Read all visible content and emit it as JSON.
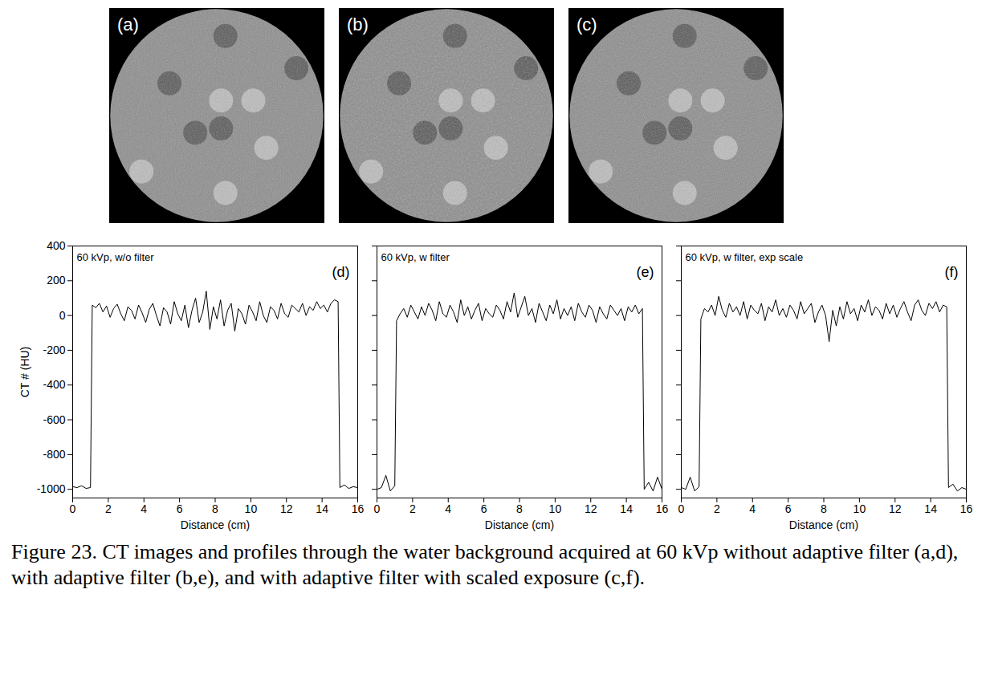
{
  "images": [
    {
      "label": "(a)"
    },
    {
      "label": "(b)"
    },
    {
      "label": "(c)"
    }
  ],
  "chart_data": [
    {
      "type": "line",
      "title": "60 kVp, w/o filter",
      "annotation": "(d)",
      "color": "#000000",
      "x_label": "Distance (cm)",
      "y_label": "CT # (HU)",
      "xlim": [
        0,
        16
      ],
      "xticks": [
        0,
        2,
        4,
        6,
        8,
        10,
        12,
        14,
        16
      ],
      "ylim": [
        -1050,
        400
      ],
      "yticks": [
        -1000,
        -800,
        -600,
        -400,
        -200,
        0,
        200,
        400
      ],
      "x": [
        0,
        0.25,
        0.5,
        0.75,
        1,
        1.1,
        1.3,
        1.5,
        1.7,
        1.9,
        2.1,
        2.3,
        2.5,
        2.7,
        2.9,
        3.1,
        3.3,
        3.5,
        3.7,
        3.9,
        4.1,
        4.3,
        4.5,
        4.7,
        4.9,
        5.1,
        5.3,
        5.5,
        5.7,
        5.9,
        6.1,
        6.3,
        6.5,
        6.7,
        6.9,
        7.1,
        7.3,
        7.5,
        7.7,
        7.9,
        8.1,
        8.3,
        8.5,
        8.7,
        8.9,
        9.1,
        9.3,
        9.5,
        9.7,
        9.9,
        10.1,
        10.3,
        10.5,
        10.7,
        10.9,
        11.1,
        11.3,
        11.5,
        11.7,
        11.9,
        12.1,
        12.3,
        12.5,
        12.7,
        12.9,
        13.1,
        13.3,
        13.5,
        13.7,
        13.9,
        14.1,
        14.3,
        14.5,
        14.7,
        14.9,
        15,
        15.25,
        15.5,
        15.75,
        16
      ],
      "values": [
        -985,
        -990,
        -980,
        -995,
        -990,
        60,
        45,
        70,
        20,
        55,
        -10,
        40,
        65,
        10,
        -30,
        50,
        30,
        -20,
        60,
        15,
        -40,
        35,
        70,
        0,
        -60,
        45,
        20,
        -50,
        80,
        10,
        -30,
        60,
        -70,
        30,
        100,
        -40,
        20,
        140,
        -80,
        50,
        -20,
        90,
        -60,
        30,
        70,
        -90,
        40,
        10,
        -50,
        60,
        20,
        -30,
        80,
        0,
        -40,
        50,
        30,
        -20,
        70,
        10,
        -10,
        60,
        40,
        20,
        70,
        0,
        50,
        30,
        80,
        40,
        60,
        20,
        70,
        90,
        80,
        -990,
        -975,
        -995,
        -985,
        -990
      ]
    },
    {
      "type": "line",
      "title": "60 kVp, w filter",
      "annotation": "(e)",
      "color": "#000000",
      "x_label": "Distance (cm)",
      "tick_labels": "x",
      "xlim": [
        0,
        16
      ],
      "xticks": [
        0,
        2,
        4,
        6,
        8,
        10,
        12,
        14,
        16
      ],
      "ylim": [
        -1050,
        400
      ],
      "yticks": [
        -1000,
        -800,
        -600,
        -400,
        -200,
        0,
        200,
        400
      ],
      "x": [
        0,
        0.25,
        0.5,
        0.75,
        1,
        1.1,
        1.3,
        1.5,
        1.7,
        1.9,
        2.1,
        2.3,
        2.5,
        2.7,
        2.9,
        3.1,
        3.3,
        3.5,
        3.7,
        3.9,
        4.1,
        4.3,
        4.5,
        4.7,
        4.9,
        5.1,
        5.3,
        5.5,
        5.7,
        5.9,
        6.1,
        6.3,
        6.5,
        6.7,
        6.9,
        7.1,
        7.3,
        7.5,
        7.7,
        7.9,
        8.1,
        8.3,
        8.5,
        8.7,
        8.9,
        9.1,
        9.3,
        9.5,
        9.7,
        9.9,
        10.1,
        10.3,
        10.5,
        10.7,
        10.9,
        11.1,
        11.3,
        11.5,
        11.7,
        11.9,
        12.1,
        12.3,
        12.5,
        12.7,
        12.9,
        13.1,
        13.3,
        13.5,
        13.7,
        13.9,
        14.1,
        14.3,
        14.5,
        14.7,
        14.9,
        15,
        15.25,
        15.5,
        15.75,
        16
      ],
      "values": [
        -1000,
        -990,
        -920,
        -1010,
        -980,
        -30,
        10,
        40,
        -10,
        60,
        20,
        -20,
        50,
        0,
        70,
        30,
        -30,
        80,
        10,
        -10,
        60,
        20,
        -40,
        90,
        0,
        50,
        -20,
        30,
        70,
        -30,
        40,
        10,
        -10,
        60,
        30,
        -20,
        80,
        20,
        130,
        -10,
        50,
        110,
        0,
        40,
        -40,
        70,
        20,
        -30,
        60,
        10,
        90,
        -20,
        40,
        0,
        50,
        -30,
        70,
        20,
        -10,
        60,
        30,
        -40,
        50,
        10,
        -20,
        60,
        30,
        0,
        40,
        -30,
        50,
        20,
        60,
        10,
        40,
        -1000,
        -960,
        -1010,
        -930,
        -1000
      ]
    },
    {
      "type": "line",
      "title": "60 kVp, w filter, exp scale",
      "annotation": "(f)",
      "color": "#000000",
      "x_label": "Distance (cm)",
      "tick_labels": "x",
      "xlim": [
        0,
        16
      ],
      "xticks": [
        0,
        2,
        4,
        6,
        8,
        10,
        12,
        14,
        16
      ],
      "ylim": [
        -1050,
        400
      ],
      "yticks": [
        -1000,
        -800,
        -600,
        -400,
        -200,
        0,
        200,
        400
      ],
      "x": [
        0,
        0.25,
        0.5,
        0.75,
        1,
        1.1,
        1.3,
        1.5,
        1.7,
        1.9,
        2.1,
        2.3,
        2.5,
        2.7,
        2.9,
        3.1,
        3.3,
        3.5,
        3.7,
        3.9,
        4.1,
        4.3,
        4.5,
        4.7,
        4.9,
        5.1,
        5.3,
        5.5,
        5.7,
        5.9,
        6.1,
        6.3,
        6.5,
        6.7,
        6.9,
        7.1,
        7.3,
        7.5,
        7.7,
        7.9,
        8.1,
        8.3,
        8.5,
        8.7,
        8.9,
        9.1,
        9.3,
        9.5,
        9.7,
        9.9,
        10.1,
        10.3,
        10.5,
        10.7,
        10.9,
        11.1,
        11.3,
        11.5,
        11.7,
        11.9,
        12.1,
        12.3,
        12.5,
        12.7,
        12.9,
        13.1,
        13.3,
        13.5,
        13.7,
        13.9,
        14.1,
        14.3,
        14.5,
        14.7,
        14.9,
        15,
        15.25,
        15.5,
        15.75,
        16
      ],
      "values": [
        -990,
        -1000,
        -930,
        -1010,
        -985,
        -20,
        40,
        20,
        60,
        0,
        110,
        30,
        -10,
        70,
        20,
        50,
        0,
        80,
        -20,
        60,
        30,
        10,
        70,
        -30,
        50,
        20,
        90,
        0,
        40,
        -10,
        60,
        30,
        -20,
        80,
        10,
        40,
        70,
        -40,
        20,
        60,
        0,
        -150,
        30,
        -60,
        50,
        -20,
        80,
        10,
        40,
        -30,
        60,
        20,
        90,
        0,
        50,
        30,
        -20,
        70,
        10,
        60,
        -10,
        40,
        80,
        20,
        -30,
        60,
        90,
        30,
        0,
        70,
        40,
        80,
        20,
        60,
        50,
        -990,
        -970,
        -1010,
        -990,
        -1000
      ]
    }
  ],
  "caption": "Figure 23. CT images and profiles through the water background acquired at 60 kVp without adaptive filter (a,d), with adaptive filter (b,e), and with adaptive filter with scaled exposure (c,f)."
}
